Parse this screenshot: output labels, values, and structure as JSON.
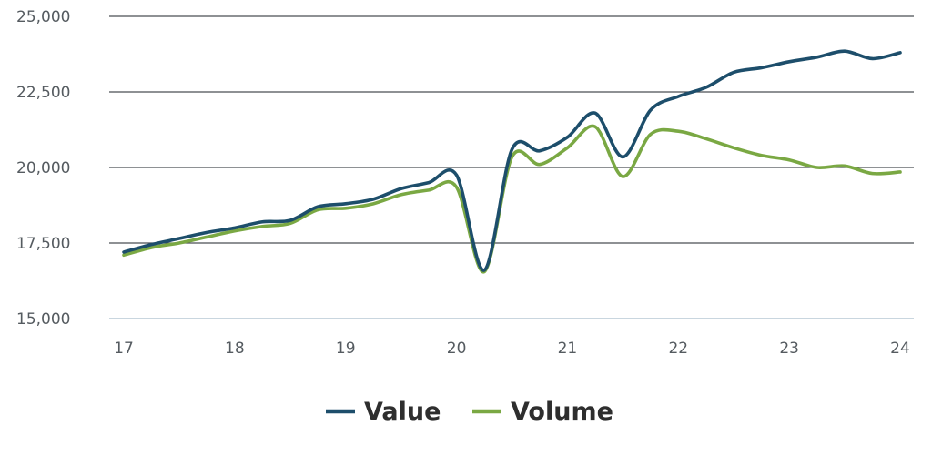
{
  "chart_data": {
    "type": "line",
    "x_ticks": [
      17,
      18,
      19,
      20,
      21,
      22,
      23,
      24
    ],
    "y_ticks": [
      15000,
      17500,
      20000,
      22500,
      25000
    ],
    "y_tick_labels": [
      "15,000",
      "17,500",
      "20,000",
      "22,500",
      "25,000"
    ],
    "xlim": [
      17,
      24
    ],
    "ylim": [
      15000,
      25000
    ],
    "grid": true,
    "legend_position": "bottom-center",
    "series": [
      {
        "name": "Value",
        "color": "#1d4e6b",
        "x": [
          17,
          17.25,
          17.5,
          17.75,
          18,
          18.25,
          18.5,
          18.75,
          19,
          19.25,
          19.5,
          19.75,
          20,
          20.25,
          20.5,
          20.75,
          21,
          21.25,
          21.5,
          21.75,
          22,
          22.25,
          22.5,
          22.75,
          23,
          23.25,
          23.5,
          23.75,
          24
        ],
        "y": [
          17200,
          17450,
          17650,
          17850,
          18000,
          18200,
          18250,
          18700,
          18800,
          18950,
          19300,
          19500,
          19750,
          16600,
          20600,
          20550,
          21000,
          21800,
          20350,
          21900,
          22350,
          22650,
          23150,
          23300,
          23500,
          23650,
          23850,
          23600,
          23800
        ]
      },
      {
        "name": "Volume",
        "color": "#7aa843",
        "x": [
          17,
          17.25,
          17.5,
          17.75,
          18,
          18.25,
          18.5,
          18.75,
          19,
          19.25,
          19.5,
          19.75,
          20,
          20.25,
          20.5,
          20.75,
          21,
          21.25,
          21.5,
          21.75,
          22,
          22.25,
          22.5,
          22.75,
          23,
          23.25,
          23.5,
          23.75,
          24
        ],
        "y": [
          17100,
          17350,
          17500,
          17700,
          17900,
          18050,
          18150,
          18600,
          18650,
          18800,
          19100,
          19250,
          19350,
          16550,
          20350,
          20100,
          20650,
          21350,
          19700,
          21100,
          21200,
          20950,
          20650,
          20400,
          20250,
          20000,
          20050,
          19800,
          19850
        ]
      }
    ]
  }
}
